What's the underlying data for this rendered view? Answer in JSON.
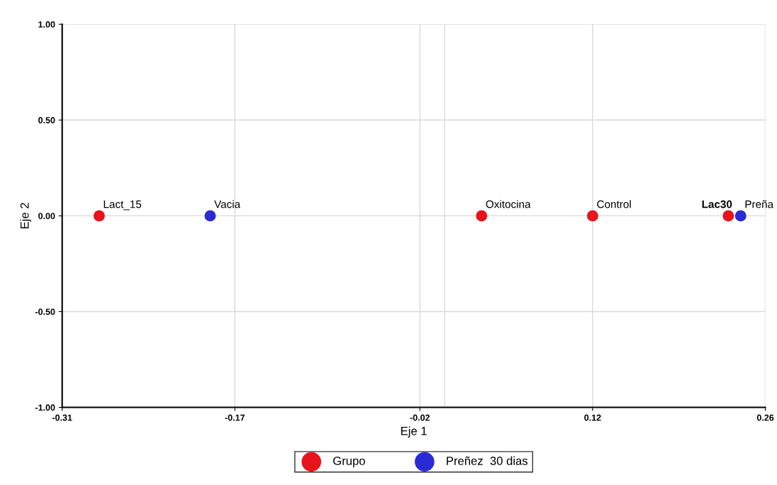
{
  "chart_data": {
    "type": "scatter",
    "xlabel": "Eje 1",
    "ylabel": "Eje 2",
    "series": [
      {
        "name": "Grupo",
        "color": "#e8141c",
        "x": [
          -0.28,
          0.03,
          0.12,
          0.23
        ],
        "values": [
          0,
          0,
          0,
          0
        ]
      },
      {
        "name": "Preñez  30 dias",
        "color": "#2b2bd6",
        "x": [
          -0.19,
          0.24
        ],
        "values": [
          0,
          0
        ]
      }
    ],
    "annotations": [
      {
        "text": "Lact_15",
        "x": -0.28,
        "y": 0
      },
      {
        "text": "Vacia",
        "x": -0.19,
        "y": 0
      },
      {
        "text": "Oxitocina",
        "x": 0.03,
        "y": 0
      },
      {
        "text": "Control",
        "x": 0.12,
        "y": 0
      },
      {
        "text": "Lac30",
        "x": 0.23,
        "y": 0
      },
      {
        "text": "Preña",
        "x": 0.24,
        "y": 0
      }
    ],
    "ref_lines": [
      {
        "axis": "x",
        "value": 0,
        "label": null,
        "color": "#d9d9d9"
      }
    ],
    "xlim": [
      -0.31,
      0.26
    ],
    "xticks": [
      {
        "value": -0.31,
        "label": "-0.31"
      },
      {
        "value": -0.17,
        "label": "-0.17"
      },
      {
        "value": -0.02,
        "label": "-0.02"
      },
      {
        "value": 0.12,
        "label": "0.12"
      },
      {
        "value": 0.26,
        "label": "0.26"
      }
    ],
    "ylim": [
      -1,
      1
    ],
    "yticks": [
      {
        "value": -1,
        "label": "-1.00"
      },
      {
        "value": -0.5,
        "label": "-0.50"
      },
      {
        "value": 0,
        "label": "0.00"
      },
      {
        "value": 0.5,
        "label": "0.50"
      },
      {
        "value": 1,
        "label": "1.00"
      }
    ],
    "grid": true,
    "legend": "bottom",
    "marker": "circle"
  }
}
